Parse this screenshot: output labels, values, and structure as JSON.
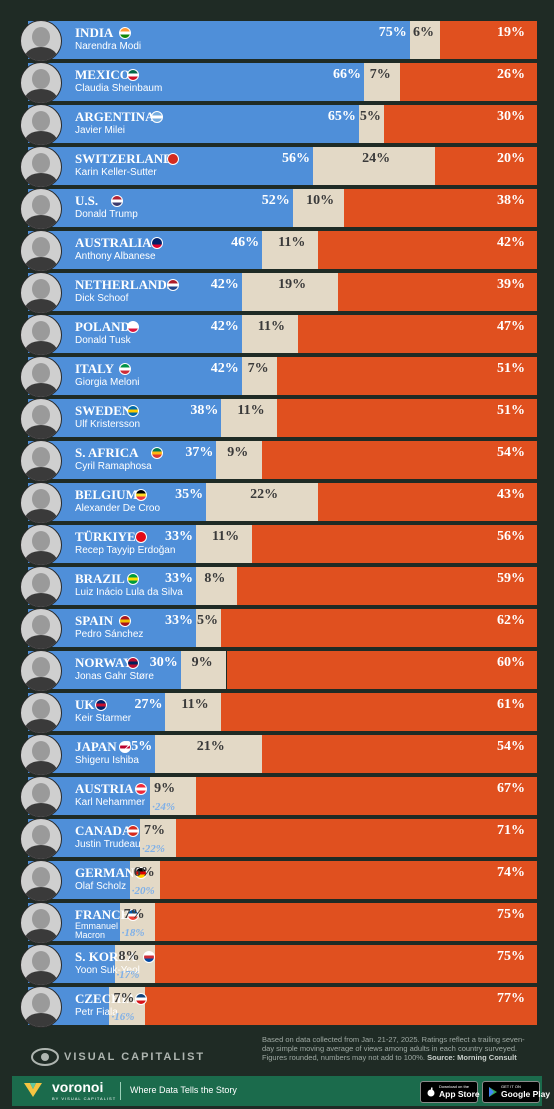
{
  "chart_data": {
    "type": "bar",
    "stacked": true,
    "orientation": "horizontal",
    "categories": [
      "INDIA",
      "MEXICO",
      "ARGENTINA",
      "SWITZERLAND",
      "U.S.",
      "AUSTRALIA",
      "NETHERLANDS",
      "POLAND",
      "ITALY",
      "SWEDEN",
      "S. AFRICA",
      "BELGIUM",
      "TÜRKIYE",
      "BRAZIL",
      "SPAIN",
      "NORWAY",
      "UK",
      "JAPAN",
      "AUSTRIA",
      "CANADA",
      "GERMANY",
      "FRANCE",
      "S. KOREA",
      "CZECHIA"
    ],
    "leaders": [
      "Narendra Modi",
      "Claudia Sheinbaum",
      "Javier Milei",
      "Karin Keller-Sutter",
      "Donald Trump",
      "Anthony Albanese",
      "Dick Schoof",
      "Donald Tusk",
      "Giorgia Meloni",
      "Ulf Kristersson",
      "Cyril Ramaphosa",
      "Alexander De Croo",
      "Recep Tayyip Erdoğan",
      "Luiz Inácio Lula da Silva",
      "Pedro Sánchez",
      "Jonas Gahr Støre",
      "Keir Starmer",
      "Shigeru Ishiba",
      "Karl Nehammer",
      "Justin Trudeau",
      "Olaf Scholz",
      "Emmanuel Macron",
      "Yoon Suk-Yeol",
      "Petr Fiala"
    ],
    "series": [
      {
        "key": "approve",
        "values": [
          75,
          66,
          65,
          56,
          52,
          46,
          42,
          42,
          42,
          38,
          37,
          35,
          33,
          33,
          33,
          30,
          27,
          25,
          24,
          22,
          20,
          18,
          17,
          16
        ]
      },
      {
        "key": "unsure",
        "values": [
          6,
          7,
          5,
          24,
          10,
          11,
          19,
          11,
          7,
          11,
          9,
          22,
          11,
          8,
          5,
          9,
          11,
          21,
          9,
          7,
          6,
          7,
          8,
          7
        ]
      },
      {
        "key": "disapprove",
        "values": [
          19,
          26,
          30,
          20,
          38,
          42,
          39,
          47,
          51,
          51,
          54,
          43,
          56,
          59,
          62,
          60,
          61,
          54,
          67,
          71,
          74,
          75,
          75,
          77
        ]
      }
    ],
    "flags": [
      [
        "#ff9933",
        "#ffffff",
        "#138808"
      ],
      [
        "#006847",
        "#ffffff",
        "#ce1126"
      ],
      [
        "#74acdf",
        "#ffffff",
        "#74acdf"
      ],
      [
        "#d52b1e",
        "#d52b1e",
        "#d52b1e"
      ],
      [
        "#b22234",
        "#ffffff",
        "#3c3b6e"
      ],
      [
        "#012169",
        "#012169",
        "#e4002b"
      ],
      [
        "#ae1c28",
        "#ffffff",
        "#21468b"
      ],
      [
        "#ffffff",
        "#ffffff",
        "#dc143c"
      ],
      [
        "#009246",
        "#ffffff",
        "#ce2b37"
      ],
      [
        "#006aa7",
        "#fecc00",
        "#006aa7"
      ],
      [
        "#007a4d",
        "#ffb612",
        "#de3831"
      ],
      [
        "#000000",
        "#fdda24",
        "#ef3340"
      ],
      [
        "#e30a17",
        "#e30a17",
        "#e30a17"
      ],
      [
        "#009c3b",
        "#ffdf00",
        "#009c3b"
      ],
      [
        "#aa151b",
        "#f1bf00",
        "#aa151b"
      ],
      [
        "#ba0c2f",
        "#00205b",
        "#ba0c2f"
      ],
      [
        "#012169",
        "#c8102e",
        "#012169"
      ],
      [
        "#ffffff",
        "#bc002d",
        "#ffffff"
      ],
      [
        "#ed2939",
        "#ffffff",
        "#ed2939"
      ],
      [
        "#d52b1e",
        "#ffffff",
        "#d52b1e"
      ],
      [
        "#000000",
        "#dd0000",
        "#ffce00"
      ],
      [
        "#0055a4",
        "#ffffff",
        "#ef4135"
      ],
      [
        "#ffffff",
        "#cd2e3a",
        "#0047a0"
      ],
      [
        "#11457e",
        "#ffffff",
        "#d7141a"
      ]
    ]
  },
  "colors": {
    "approve": "#4f8fd9",
    "unsure": "#e3d9c6",
    "disapprove": "#e0501f",
    "background": "#1f2b25"
  },
  "source": {
    "text": "Based on data collected from Jan. 21-27, 2025. Ratings reflect a trailing seven-day simple moving average of views among adults in each country surveyed. Figures rounded, numbers may not add to 100%.",
    "label": "Source:",
    "name": "Morning Consult"
  },
  "brand": {
    "name": "VISUAL CAPITALIST",
    "icon": "visual-capitalist-logo-icon"
  },
  "footer": {
    "logo": "voronoi",
    "sub": "BY VISUAL CAPITALIST",
    "tagline": "Where Data Tells the Story",
    "app_store_small": "Download on the",
    "app_store": "App Store",
    "google_play_small": "GET IT ON",
    "google_play": "Google Play"
  }
}
